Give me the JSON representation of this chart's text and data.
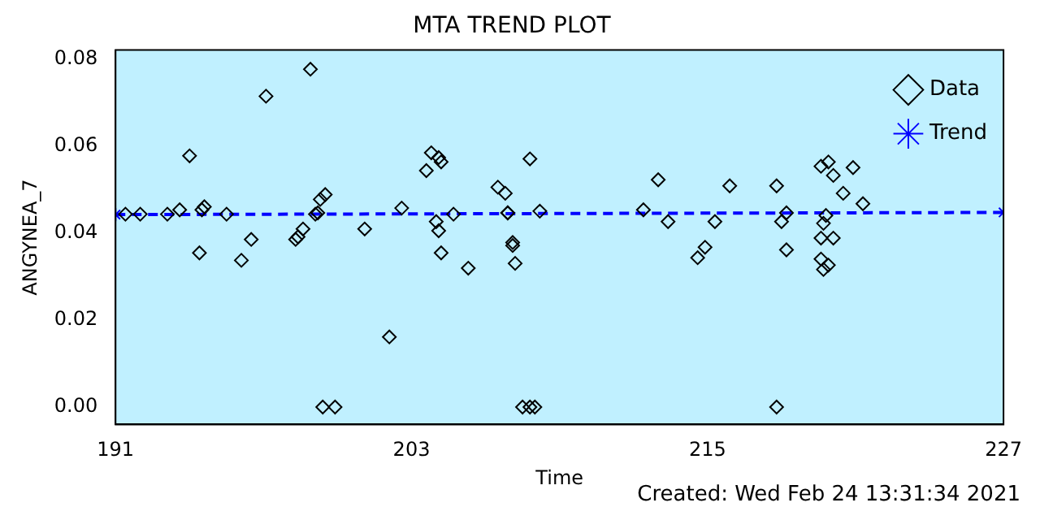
{
  "chart_data": {
    "type": "scatter",
    "title": "MTA TREND PLOT",
    "xlabel": "Time",
    "ylabel": "ANGYNEA_7",
    "xlim": [
      191,
      227
    ],
    "xticks": [
      191,
      203,
      215,
      227
    ],
    "ylim": [
      -0.004,
      0.082
    ],
    "yticks": [
      {
        "value": 0,
        "label": "0.00"
      },
      {
        "value": 0.02,
        "label": "0.02"
      },
      {
        "value": 0.04,
        "label": "0.04"
      },
      {
        "value": 0.06,
        "label": "0.06"
      },
      {
        "value": 0.08,
        "label": "0.08"
      }
    ],
    "grid": false,
    "legend": "top right",
    "annotations": [
      "Created: Wed Feb 24 13:31:34 2021"
    ],
    "series": [
      {
        "name": "Data",
        "type": "scatter",
        "marker": "diamond",
        "color": "#000000",
        "x": [
          191.4,
          192.0,
          193.1,
          193.6,
          194.0,
          194.4,
          194.5,
          194.6,
          195.5,
          196.1,
          196.5,
          197.1,
          198.3,
          198.4,
          198.6,
          198.9,
          199.1,
          199.2,
          199.3,
          199.5,
          199.4,
          199.9,
          201.1,
          202.1,
          202.6,
          203.6,
          203.8,
          204.1,
          204.2,
          204.0,
          204.1,
          204.2,
          204.7,
          205.3,
          206.5,
          206.8,
          206.9,
          206.9,
          207.1,
          207.1,
          207.2,
          207.8,
          207.5,
          207.8,
          208.0,
          208.2,
          212.4,
          213.0,
          213.4,
          214.6,
          214.9,
          215.3,
          215.9,
          217.8,
          217.8,
          218.2,
          218.0,
          218.2,
          219.6,
          219.9,
          219.8,
          219.7,
          219.6,
          219.7,
          219.9,
          219.6,
          220.1,
          220.5,
          220.9,
          221.3,
          220.1
        ],
        "values": [
          0.0443,
          0.0443,
          0.0443,
          0.0453,
          0.0577,
          0.0354,
          0.0453,
          0.046,
          0.0443,
          0.0337,
          0.0385,
          0.0714,
          0.0385,
          0.0391,
          0.0409,
          0.0776,
          0.0443,
          0.0446,
          0.0477,
          0.0488,
          0,
          0,
          0.0409,
          0.0161,
          0.0457,
          0.0543,
          0.0584,
          0.0573,
          0.0563,
          0.0426,
          0.0405,
          0.0354,
          0.0443,
          0.0319,
          0.0505,
          0.0491,
          0.0446,
          0.0446,
          0.0378,
          0.0371,
          0.033,
          0.057,
          0,
          0,
          0,
          0.045,
          0.0453,
          0.0522,
          0.0426,
          0.0343,
          0.0367,
          0.0426,
          0.0508,
          0.0508,
          0,
          0.0361,
          0.0426,
          0.0446,
          0.0553,
          0.0563,
          0.044,
          0.0422,
          0.0388,
          0.0316,
          0.0326,
          0.034,
          0.0532,
          0.0491,
          0.055,
          0.0467,
          0.0388
        ]
      },
      {
        "name": "Trend",
        "type": "line",
        "marker": "cross",
        "line_style": "dashed",
        "color": "#0000ff",
        "x": [
          191,
          227
        ],
        "values": [
          0.0442,
          0.0447
        ]
      }
    ]
  }
}
